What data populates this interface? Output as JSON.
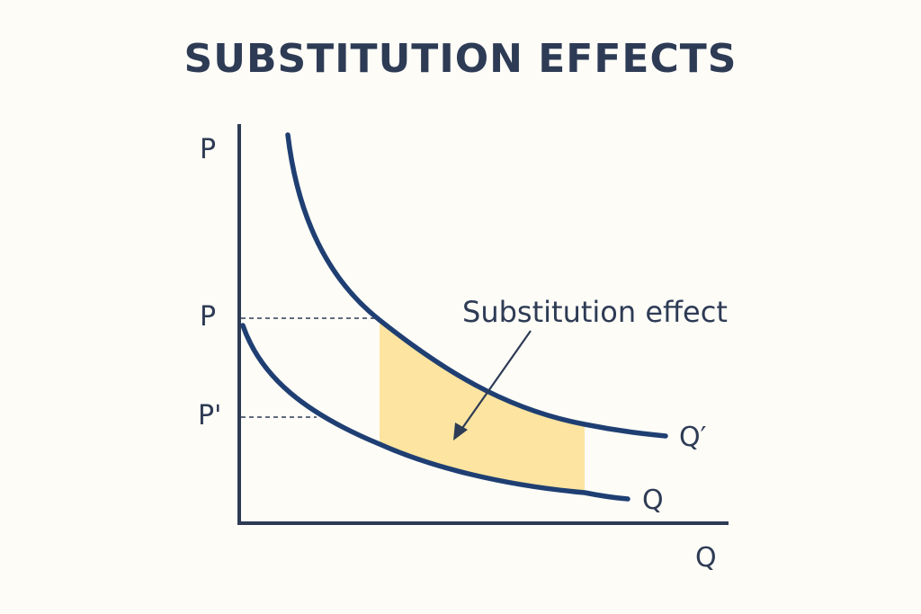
{
  "title": "SUBSTITUTION EFFECTS",
  "labels": {
    "y_axis_top": "P",
    "price_p": "P",
    "price_p_prime": "P'",
    "x_axis": "Q",
    "curve_upper": "Q′",
    "curve_lower": "Q",
    "annotation": "Substitution effect"
  },
  "colors": {
    "background": "#fdfcf7",
    "text": "#2e3b55",
    "axis": "#2e3b55",
    "curve": "#1f3f73",
    "shade": "#fde4a0",
    "dashed": "#2e3b55"
  }
}
